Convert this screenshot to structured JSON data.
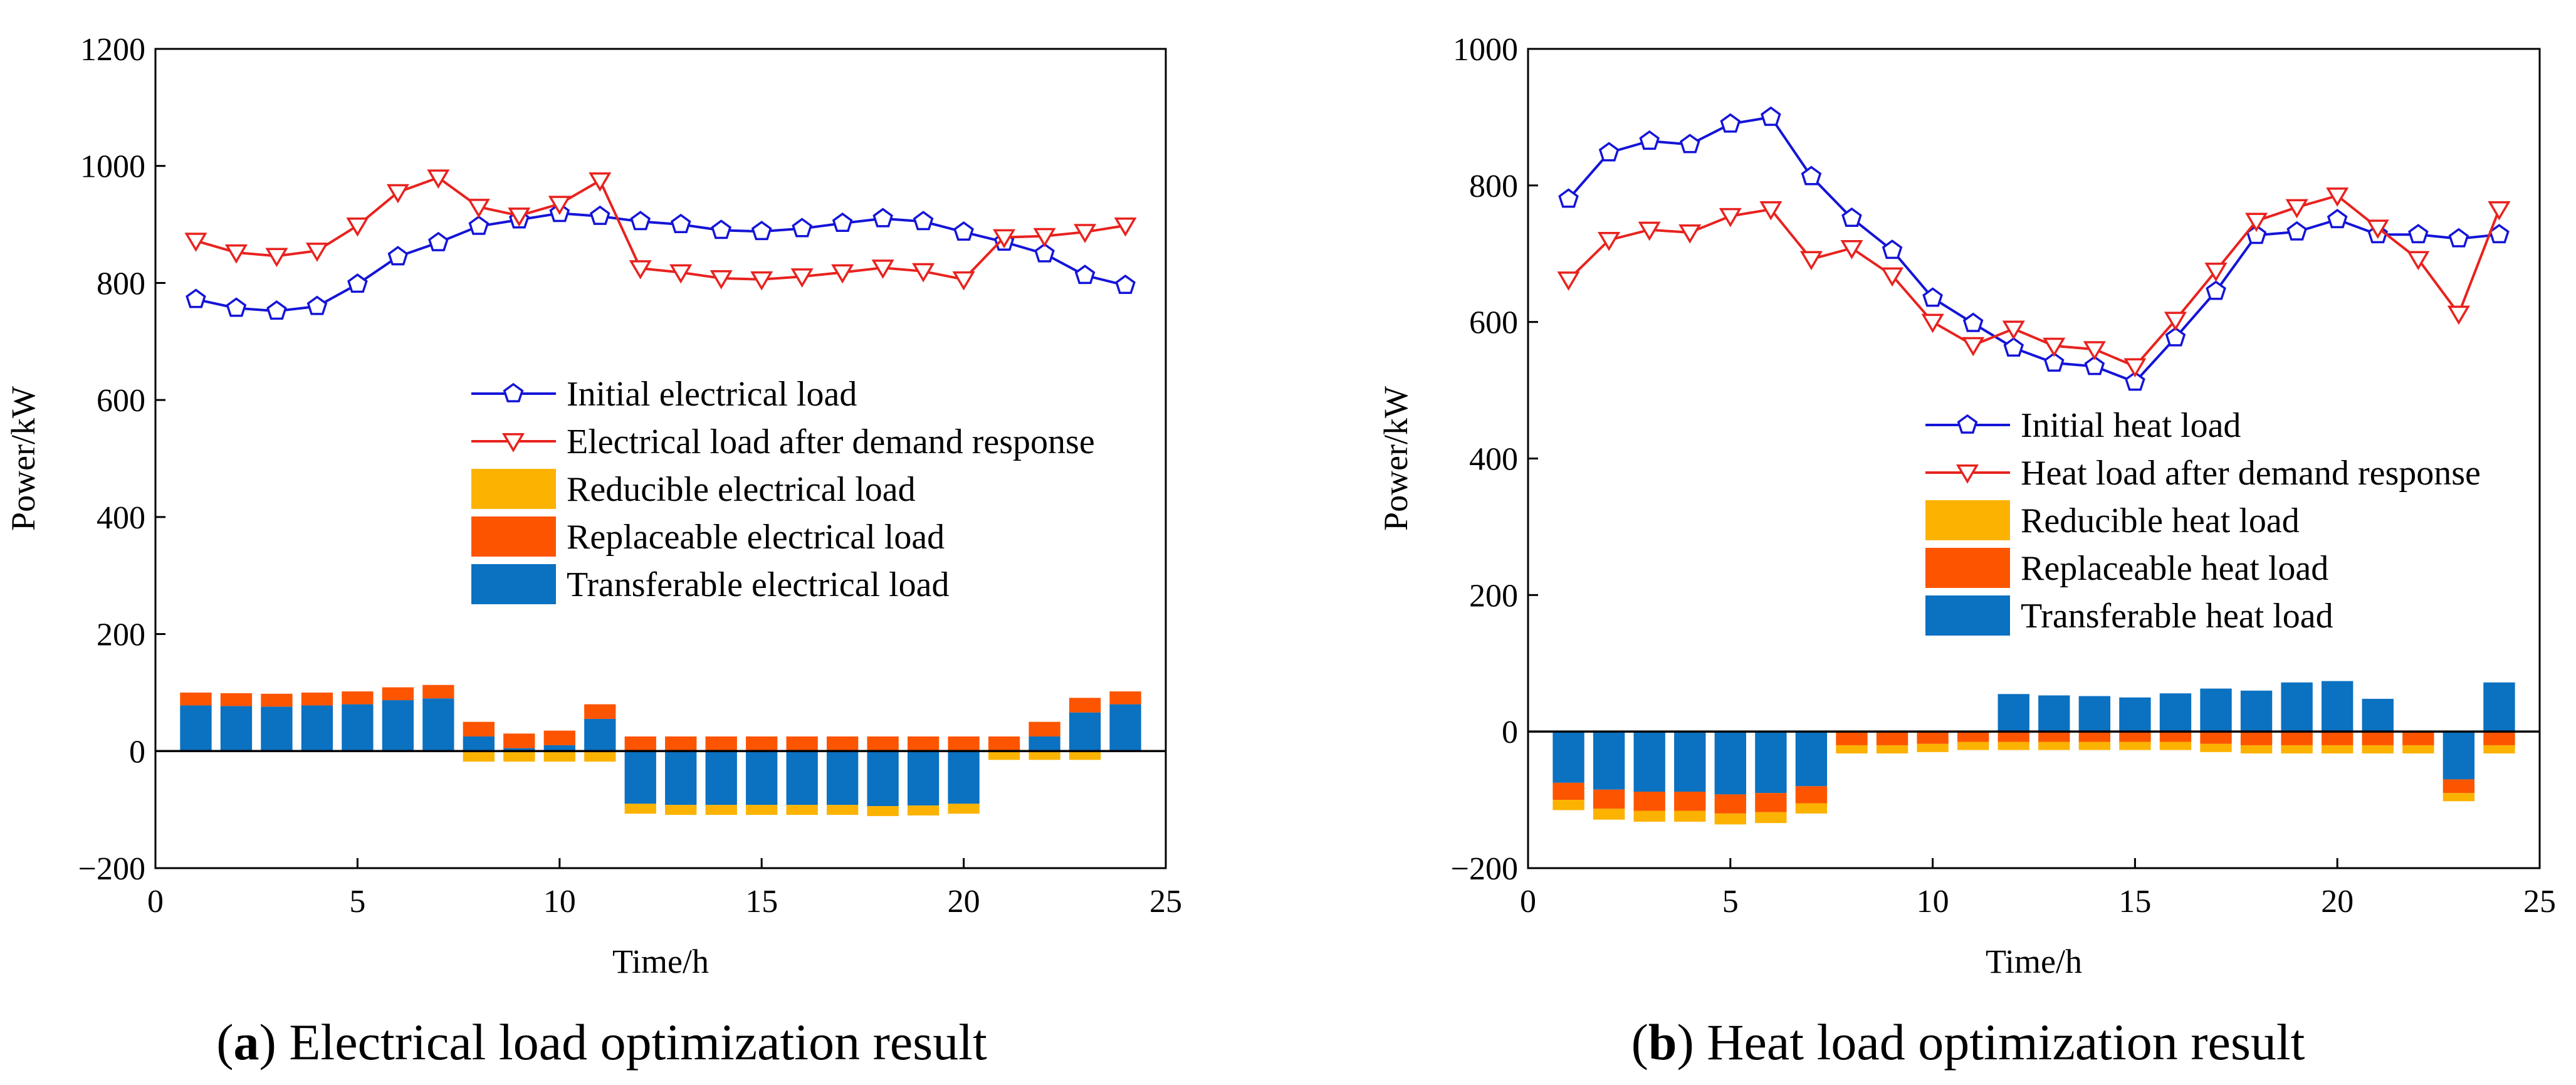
{
  "colors": {
    "initial_line": "#1414d8",
    "after_line": "#e8221e",
    "reducible": "#fcb200",
    "replaceable": "#fd5400",
    "transferable": "#0b71c1"
  },
  "chart_data": [
    {
      "type": "bar+line",
      "id": "a",
      "caption_letter": "a",
      "caption_text": ") Electrical load optimization result",
      "caption_open": "(",
      "xlabel": "Time/h",
      "ylabel": "Power/kW",
      "xlim": [
        0,
        25
      ],
      "ylim": [
        -200,
        1200
      ],
      "xticks": [
        "0",
        "5",
        "10",
        "15",
        "20",
        "25"
      ],
      "yticks": [
        "−200",
        "0",
        "200",
        "400",
        "600",
        "800",
        "1000",
        "1200"
      ],
      "legend_position": "center-right",
      "x": [
        1,
        2,
        3,
        4,
        5,
        6,
        7,
        8,
        9,
        10,
        11,
        12,
        13,
        14,
        15,
        16,
        17,
        18,
        19,
        20,
        21,
        22,
        23,
        24
      ],
      "series": [
        {
          "name": "Initial electrical load",
          "kind": "line",
          "marker": "pentagon",
          "values": [
            772,
            757,
            752,
            760,
            798,
            845,
            869,
            897,
            908,
            919,
            914,
            905,
            900,
            890,
            888,
            893,
            902,
            910,
            905,
            887,
            870,
            850,
            813,
            796
          ]
        },
        {
          "name": "Electrical load after demand response",
          "kind": "line",
          "marker": "triangle-down",
          "values": [
            872,
            852,
            846,
            855,
            898,
            955,
            980,
            930,
            915,
            935,
            975,
            825,
            818,
            808,
            806,
            811,
            818,
            826,
            820,
            806,
            878,
            880,
            887,
            898
          ]
        },
        {
          "name": "Reducible electrical load",
          "kind": "bar",
          "values": [
            0,
            0,
            0,
            0,
            0,
            0,
            0,
            -18,
            -18,
            -18,
            -18,
            -17,
            -17,
            -17,
            -17,
            -17,
            -17,
            -17,
            -17,
            -17,
            -15,
            -15,
            -15,
            0
          ]
        },
        {
          "name": "Replaceable electrical load",
          "kind": "bar",
          "values": [
            22,
            22,
            22,
            22,
            22,
            22,
            23,
            25,
            25,
            25,
            25,
            25,
            25,
            25,
            25,
            25,
            25,
            25,
            25,
            25,
            25,
            25,
            25,
            22
          ]
        },
        {
          "name": "Transferable electrical load",
          "kind": "bar",
          "values": [
            78,
            77,
            76,
            78,
            80,
            87,
            90,
            25,
            5,
            10,
            55,
            -90,
            -92,
            -92,
            -92,
            -92,
            -92,
            -94,
            -93,
            -90,
            0,
            25,
            66,
            80
          ]
        }
      ]
    },
    {
      "type": "bar+line",
      "id": "b",
      "caption_letter": "b",
      "caption_text": ") Heat load optimization result",
      "caption_open": "(",
      "xlabel": "Time/h",
      "ylabel": "Power/kW",
      "xlim": [
        0,
        25
      ],
      "ylim": [
        -200,
        1000
      ],
      "xticks": [
        "0",
        "5",
        "10",
        "15",
        "20",
        "25"
      ],
      "yticks": [
        "−200",
        "0",
        "200",
        "400",
        "600",
        "800",
        "1000"
      ],
      "legend_position": "center-right",
      "x": [
        1,
        2,
        3,
        4,
        5,
        6,
        7,
        8,
        9,
        10,
        11,
        12,
        13,
        14,
        15,
        16,
        17,
        18,
        19,
        20,
        21,
        22,
        23,
        24
      ],
      "series": [
        {
          "name": "Initial heat load",
          "kind": "line",
          "marker": "pentagon",
          "values": [
            780,
            848,
            865,
            860,
            890,
            900,
            813,
            752,
            705,
            635,
            598,
            562,
            540,
            535,
            512,
            577,
            645,
            727,
            732,
            750,
            728,
            728,
            722,
            728
          ]
        },
        {
          "name": "Heat load after demand response",
          "kind": "line",
          "marker": "triangle-down",
          "values": [
            662,
            720,
            735,
            731,
            755,
            765,
            692,
            708,
            668,
            600,
            566,
            590,
            565,
            560,
            535,
            603,
            675,
            748,
            768,
            785,
            738,
            692,
            612,
            765
          ]
        },
        {
          "name": "Reducible heat load",
          "kind": "bar",
          "values": [
            -15,
            -16,
            -16,
            -16,
            -16,
            -16,
            -15,
            -12,
            -12,
            -12,
            -12,
            -12,
            -12,
            -12,
            -12,
            -12,
            -12,
            -12,
            -12,
            -12,
            -12,
            -12,
            -12,
            -12
          ]
        },
        {
          "name": "Replaceable heat load",
          "kind": "bar",
          "values": [
            -25,
            -28,
            -28,
            -28,
            -28,
            -28,
            -25,
            -20,
            -20,
            -18,
            -15,
            -15,
            -15,
            -15,
            -15,
            -15,
            -18,
            -20,
            -20,
            -20,
            -20,
            -20,
            -20,
            -20
          ]
        },
        {
          "name": "Transferable heat load",
          "kind": "bar",
          "values": [
            -75,
            -85,
            -88,
            -88,
            -92,
            -90,
            -80,
            0,
            0,
            0,
            0,
            55,
            53,
            52,
            50,
            56,
            63,
            60,
            72,
            74,
            48,
            0,
            -70,
            72
          ]
        }
      ]
    }
  ]
}
